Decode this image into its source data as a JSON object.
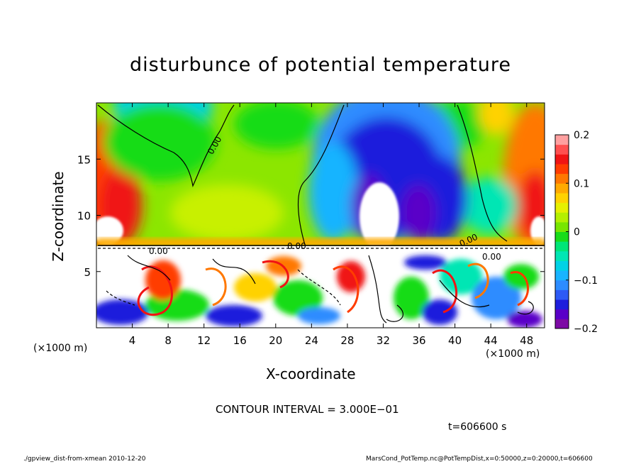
{
  "chart_data": {
    "type": "heatmap",
    "title": "disturbunce of potential temperature",
    "xlabel": "X-coordinate",
    "ylabel": "Z-coordinate",
    "x_unit_left": "(×1000 m)",
    "x_unit_right": "(×1000 m)",
    "xlim": [
      0,
      50
    ],
    "ylim": [
      0,
      20
    ],
    "x_ticks": [
      4,
      8,
      12,
      16,
      20,
      24,
      28,
      32,
      36,
      40,
      44,
      48
    ],
    "y_ticks": [
      5,
      10,
      15
    ],
    "colorbar": {
      "range": [
        -0.2,
        0.2
      ],
      "ticks": [
        0.2,
        0.1,
        0,
        -0.1,
        -0.2
      ],
      "tick_labels": [
        "0.2",
        "0.1",
        "0",
        "−0.1",
        "−0.2"
      ],
      "colors": [
        "#7d0aa5",
        "#5a00c8",
        "#1e1edc",
        "#2d5af5",
        "#2d8cff",
        "#19b4ff",
        "#00d2e6",
        "#00e6b4",
        "#00e678",
        "#19dc19",
        "#78e600",
        "#b4f000",
        "#e6f000",
        "#ffd200",
        "#ffaa00",
        "#ff7800",
        "#ff3c00",
        "#f01414",
        "#ff5050",
        "#ffa0a0"
      ]
    },
    "contour_labels": [
      "0.00",
      "0.00",
      "0.00",
      "0.00",
      "0.00"
    ],
    "contour_interval_text": "CONTOUR INTERVAL = 3.000E−01",
    "time_text": "t=606600 s"
  },
  "footer": {
    "left": "./gpview_dist-from-xmean 2010-12-20",
    "right": "MarsCond_PotTemp.nc@PotTempDist,x=0:50000,z=0:20000,t=606600"
  }
}
